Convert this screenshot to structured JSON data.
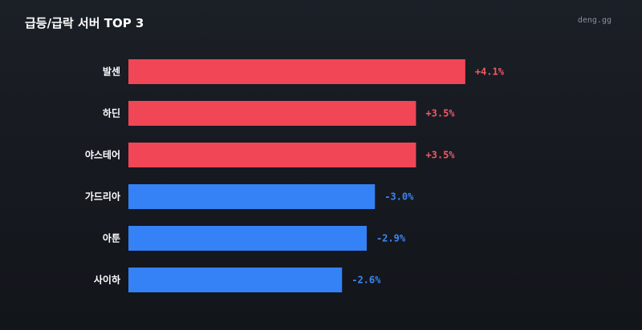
{
  "header": {
    "title": "급등/급락 서버 TOP 3",
    "source": "deng.gg"
  },
  "colors": {
    "background": "#15181e",
    "positive": "#f04656",
    "negative": "#3482f6",
    "positive_text": "#f25867",
    "negative_text": "#3c87f4"
  },
  "chart_data": {
    "type": "bar",
    "orientation": "horizontal",
    "title": "급등/급락 서버 TOP 3",
    "categories": [
      "발센",
      "하딘",
      "야스테어",
      "가드리아",
      "아툰",
      "사이하"
    ],
    "values": [
      4.1,
      3.5,
      3.5,
      -3.0,
      -2.9,
      -2.6
    ],
    "value_labels": [
      "+4.1%",
      "+3.5%",
      "+3.5%",
      "-3.0%",
      "-2.9%",
      "-2.6%"
    ],
    "unit": "%",
    "bar_length_encodes": "absolute value",
    "grid": false,
    "legend": "none"
  }
}
